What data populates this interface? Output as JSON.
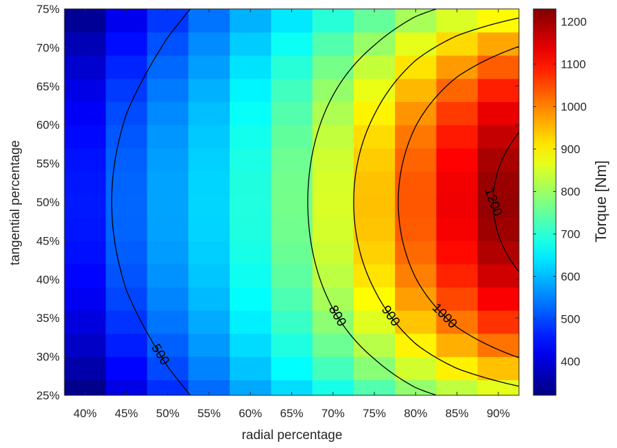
{
  "chart_data": {
    "type": "heatmap",
    "title": "",
    "xlabel": "radial percentage",
    "ylabel": "tangential percentage",
    "x_tick_labels": [
      "40%",
      "45%",
      "50%",
      "55%",
      "60%",
      "65%",
      "70%",
      "75%",
      "80%",
      "85%",
      "90%"
    ],
    "y_tick_labels": [
      "25%",
      "30%",
      "35%",
      "40%",
      "45%",
      "50%",
      "55%",
      "60%",
      "65%",
      "70%",
      "75%"
    ],
    "x_range": [
      37.5,
      92.5
    ],
    "y_range": [
      25,
      75
    ],
    "radial_percent_centers": [
      40,
      45,
      50,
      55,
      60,
      65,
      70,
      75,
      80,
      85,
      90
    ],
    "tangential_percent_centers": [
      25.5,
      28.5,
      31.5,
      34.5,
      37.5,
      40.5,
      43.5,
      46.5,
      49.5,
      52.5,
      55.5,
      58.5,
      61.5,
      64.5,
      67.5,
      70.5,
      73.5
    ],
    "torque_peak_by_radial_Nm": [
      455,
      525,
      580,
      625,
      690,
      765,
      855,
      945,
      1040,
      1130,
      1210
    ],
    "torque_drop_at_tangential_edges_by_radial_Nm": [
      130,
      120,
      110,
      100,
      110,
      140,
      180,
      220,
      260,
      310,
      360
    ],
    "peak_tangential_percent": 50,
    "contour_levels": [
      500,
      800,
      900,
      1000,
      1200
    ],
    "contour_labels": [
      "500",
      "800",
      "900",
      "1000",
      "1200"
    ],
    "colorbar": {
      "label": "Torque [Nm]",
      "range": [
        320,
        1230
      ],
      "ticks": [
        400,
        500,
        600,
        700,
        800,
        900,
        1000,
        1100,
        1200
      ],
      "tick_labels": [
        "400",
        "500",
        "600",
        "700",
        "800",
        "900",
        "1000",
        "1100",
        "1200"
      ],
      "colormap": "jet"
    },
    "grid": false
  }
}
